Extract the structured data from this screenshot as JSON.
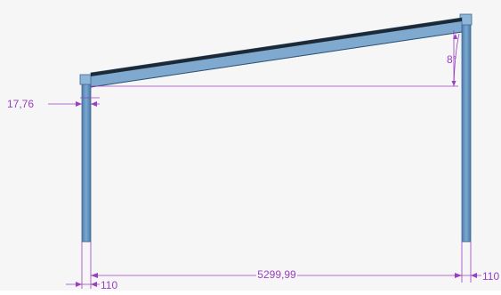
{
  "viewport": {
    "background": "#f6f6f6",
    "frame_color": "#6f9ec6",
    "frame_dark": "#3d6690",
    "frame_top_edge": "#1d2a36",
    "dimension_color": "#9a3fc0"
  },
  "dimensions": {
    "column_offset": "17,76",
    "roof_angle": "8°",
    "span": "5299,99",
    "left_column_width": "110",
    "right_column_width": "110"
  }
}
